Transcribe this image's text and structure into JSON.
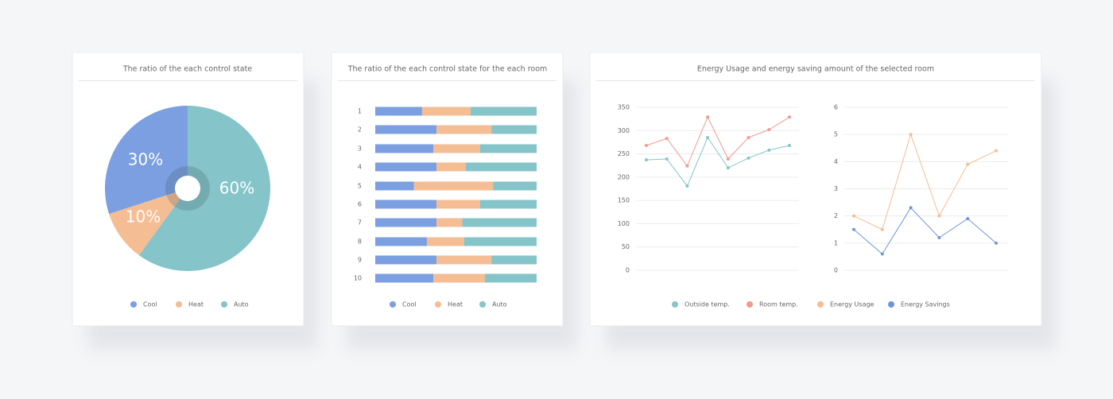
{
  "chart_data": [
    {
      "type": "pie",
      "title": "The ratio of the each control state",
      "categories": [
        "Cool",
        "Heat",
        "Auto"
      ],
      "values": [
        30,
        10,
        60
      ],
      "value_labels": [
        "30%",
        "10%",
        "60%"
      ],
      "colors": [
        "#7b9fe0",
        "#f5bd93",
        "#85c4c8"
      ],
      "legend": "bottom"
    },
    {
      "type": "bar",
      "orientation": "horizontal",
      "stacked": true,
      "title": "The ratio of the each control state for the each room",
      "categories": [
        "1",
        "2",
        "3",
        "4",
        "5",
        "6",
        "7",
        "8",
        "9",
        "10"
      ],
      "xlim": [
        0,
        100
      ],
      "series": [
        {
          "name": "Cool",
          "color": "#7b9fe0",
          "values": [
            29,
            38,
            36,
            38,
            24,
            38,
            38,
            32,
            38,
            36
          ]
        },
        {
          "name": "Heat",
          "color": "#f5bd93",
          "values": [
            30,
            34,
            29,
            18,
            49,
            27,
            16,
            23,
            34,
            32
          ]
        },
        {
          "name": "Auto",
          "color": "#85c4c8",
          "values": [
            41,
            28,
            35,
            44,
            27,
            35,
            46,
            45,
            28,
            32
          ]
        }
      ],
      "legend": "bottom"
    },
    {
      "type": "line",
      "title": "Energy Usage and energy saving amount of the selected room",
      "categories": [
        null,
        null,
        null,
        null,
        null,
        null,
        null,
        null
      ],
      "ylim": [
        0,
        350
      ],
      "yticks": [
        0,
        50,
        100,
        150,
        200,
        250,
        300,
        350
      ],
      "grid": true,
      "series": [
        {
          "name": "Outside temp.",
          "color": "#86c5c8",
          "values": [
            237,
            239,
            181,
            285,
            220,
            241,
            258,
            268
          ]
        },
        {
          "name": "Room temp.",
          "color": "#ee9a8f",
          "values": [
            268,
            283,
            224,
            329,
            239,
            285,
            302,
            329
          ]
        }
      ],
      "legend": "bottom"
    },
    {
      "type": "line",
      "categories": [
        null,
        null,
        null,
        null,
        null,
        null
      ],
      "ylim": [
        0,
        6
      ],
      "yticks": [
        0,
        1,
        2,
        3,
        4,
        5,
        6
      ],
      "grid": true,
      "series": [
        {
          "name": "Energy Usage",
          "color": "#f5bd93",
          "values": [
            2.0,
            1.5,
            5.0,
            2.0,
            3.9,
            4.4
          ]
        },
        {
          "name": "Energy Savings",
          "color": "#6d95dc",
          "values": [
            1.5,
            0.6,
            2.3,
            1.2,
            1.9,
            1.0
          ]
        }
      ],
      "legend": "bottom"
    }
  ]
}
